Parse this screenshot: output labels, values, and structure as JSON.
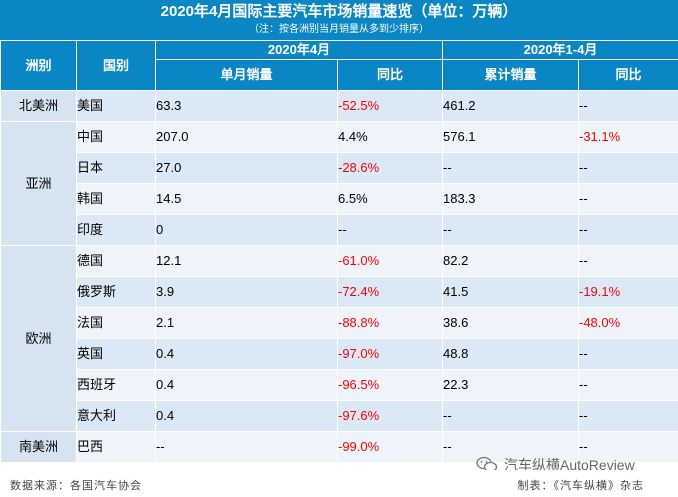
{
  "header": {
    "title": "2020年4月国际主要汽车市场销量速览（单位：万辆）",
    "note": "（注：按各洲别当月销量从多到少排序）"
  },
  "columns": {
    "group_april": "2020年4月",
    "group_ytd": "2020年1-4月",
    "continent": "洲别",
    "country": "国别",
    "monthly_sales": "单月销量",
    "yoy": "同比",
    "cumulative_sales": "累计销量",
    "yoy_ytd": "同比"
  },
  "continents": [
    {
      "name": "北美洲",
      "rows": [
        {
          "country": "美国",
          "monthly": "63.3",
          "yoy": "-52.5%",
          "cum": "461.2",
          "yoy_ytd": "--"
        }
      ]
    },
    {
      "name": "亚洲",
      "rows": [
        {
          "country": "中国",
          "monthly": "207.0",
          "yoy": "4.4%",
          "cum": "576.1",
          "yoy_ytd": "-31.1%"
        },
        {
          "country": "日本",
          "monthly": "27.0",
          "yoy": "-28.6%",
          "cum": "--",
          "yoy_ytd": "--"
        },
        {
          "country": "韩国",
          "monthly": "14.5",
          "yoy": "6.5%",
          "cum": "183.3",
          "yoy_ytd": "--"
        },
        {
          "country": "印度",
          "monthly": "0",
          "yoy": "--",
          "cum": "--",
          "yoy_ytd": "--"
        }
      ]
    },
    {
      "name": "欧洲",
      "rows": [
        {
          "country": "德国",
          "monthly": "12.1",
          "yoy": "-61.0%",
          "cum": "82.2",
          "yoy_ytd": "--"
        },
        {
          "country": "俄罗斯",
          "monthly": "3.9",
          "yoy": "-72.4%",
          "cum": "41.5",
          "yoy_ytd": "-19.1%"
        },
        {
          "country": "法国",
          "monthly": "2.1",
          "yoy": "-88.8%",
          "cum": "38.6",
          "yoy_ytd": "-48.0%"
        },
        {
          "country": "英国",
          "monthly": "0.4",
          "yoy": "-97.0%",
          "cum": "48.8",
          "yoy_ytd": "--"
        },
        {
          "country": "西班牙",
          "monthly": "0.4",
          "yoy": "-96.5%",
          "cum": "22.3",
          "yoy_ytd": "--"
        },
        {
          "country": "意大利",
          "monthly": "0.4",
          "yoy": "-97.6%",
          "cum": "--",
          "yoy_ytd": "--"
        }
      ]
    },
    {
      "name": "南美洲",
      "rows": [
        {
          "country": "巴西",
          "monthly": "--",
          "yoy": "-99.0%",
          "cum": "--",
          "yoy_ytd": "--"
        }
      ]
    }
  ],
  "footer": {
    "source": "数据来源：各国汽车协会",
    "maker": "制表：《汽车纵横》杂志",
    "watermark": "汽车纵横AutoReview"
  },
  "colors": {
    "header_blue": "#0b86c4",
    "negative_red": "#ff0000",
    "row_light": "#dbe8f5"
  }
}
